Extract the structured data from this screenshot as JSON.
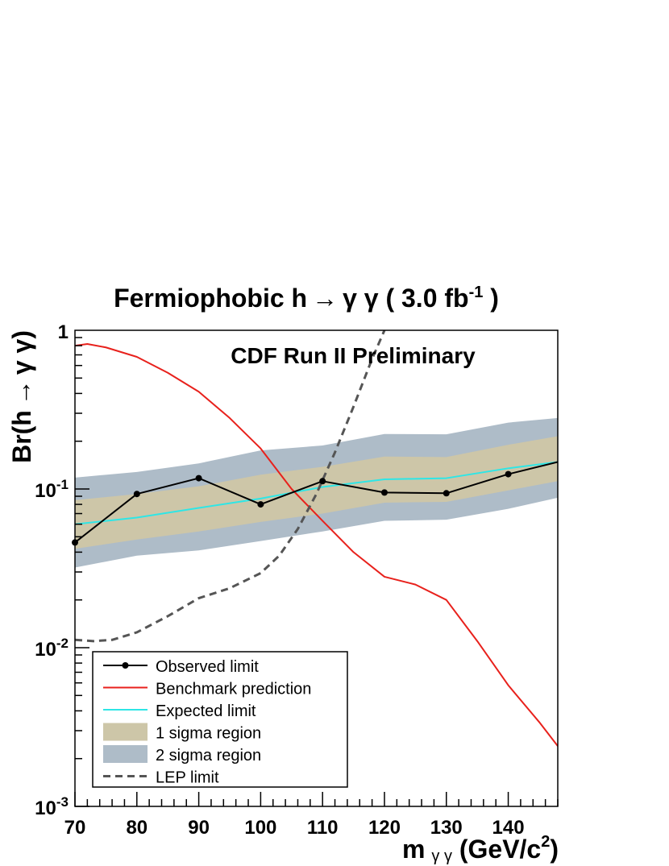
{
  "chart_data": {
    "type": "line",
    "title": {
      "prefix": "Fermiophobic h",
      "arrow": "→",
      "middle": "γ γ ( 3.0 fb",
      "sup": "-1",
      "suffix": " )"
    },
    "annotation": "CDF Run II Preliminary",
    "xlabel": {
      "main": "m",
      "sub": "γ γ",
      "unit": " (GeV/c",
      "sup": "2",
      "close": ")"
    },
    "ylabel": {
      "main": "Br(h",
      "arrow": "→",
      "rest": "γ γ)"
    },
    "xlim": [
      70,
      148
    ],
    "ylim": [
      0.001,
      1
    ],
    "yscale": "log",
    "x_ticks": [
      70,
      80,
      90,
      100,
      110,
      120,
      130,
      140
    ],
    "x_tick_labels": [
      "70",
      "80",
      "90",
      "100",
      "110",
      "120",
      "130",
      "140"
    ],
    "y_ticks": [
      {
        "base": "10",
        "exp": "-3",
        "value": 0.001
      },
      {
        "base": "10",
        "exp": "-2",
        "value": 0.01
      },
      {
        "base": "10",
        "exp": "-1",
        "value": 0.1
      },
      {
        "base": "1",
        "exp": "",
        "value": 1
      }
    ],
    "series": [
      {
        "name": "2 sigma region",
        "kind": "band",
        "color": "#aebcc8",
        "x": [
          70,
          80,
          90,
          100,
          110,
          120,
          130,
          140,
          148
        ],
        "lower": [
          0.032,
          0.038,
          0.041,
          0.047,
          0.054,
          0.063,
          0.064,
          0.075,
          0.088
        ],
        "upper": [
          0.118,
          0.128,
          0.145,
          0.175,
          0.188,
          0.222,
          0.221,
          0.262,
          0.28
        ]
      },
      {
        "name": "1 sigma region",
        "kind": "band",
        "color": "#cdc6a8",
        "x": [
          70,
          80,
          90,
          100,
          110,
          120,
          130,
          140,
          148
        ],
        "lower": [
          0.042,
          0.048,
          0.054,
          0.062,
          0.07,
          0.082,
          0.083,
          0.098,
          0.112
        ],
        "upper": [
          0.085,
          0.093,
          0.104,
          0.123,
          0.138,
          0.16,
          0.159,
          0.19,
          0.215
        ]
      },
      {
        "name": "Expected limit",
        "kind": "line",
        "color": "#2ee6e6",
        "x": [
          70,
          80,
          90,
          100,
          110,
          120,
          130,
          140,
          148
        ],
        "values": [
          0.06,
          0.066,
          0.076,
          0.087,
          0.103,
          0.115,
          0.117,
          0.135,
          0.148
        ]
      },
      {
        "name": "Benchmark prediction",
        "kind": "line",
        "color": "#e8211c",
        "x": [
          70,
          72,
          75,
          80,
          85,
          90,
          95,
          100,
          105,
          110,
          115,
          120,
          125,
          130,
          135,
          140,
          145,
          148
        ],
        "values": [
          0.8,
          0.82,
          0.78,
          0.68,
          0.54,
          0.41,
          0.28,
          0.18,
          0.1,
          0.063,
          0.04,
          0.028,
          0.025,
          0.02,
          0.011,
          0.0058,
          0.0034,
          0.0024
        ]
      },
      {
        "name": "LEP limit",
        "kind": "dashed",
        "color": "#555555",
        "x": [
          70,
          73,
          76,
          80,
          85,
          90,
          95,
          100,
          103,
          106,
          109,
          112,
          115,
          118,
          120
        ],
        "values": [
          0.0112,
          0.011,
          0.0112,
          0.0125,
          0.0158,
          0.0205,
          0.0237,
          0.0295,
          0.038,
          0.056,
          0.093,
          0.17,
          0.33,
          0.66,
          1.0
        ]
      },
      {
        "name": "Observed limit",
        "kind": "line-markers",
        "color": "#000000",
        "x": [
          70,
          80,
          90,
          100,
          110,
          120,
          130,
          140,
          148
        ],
        "values": [
          0.046,
          0.093,
          0.117,
          0.08,
          0.112,
          0.095,
          0.094,
          0.124,
          0.148
        ]
      }
    ],
    "legend": {
      "placement": "bottom-left",
      "entries": [
        {
          "label": "Observed limit",
          "kind": "line-markers",
          "color": "#000000"
        },
        {
          "label": "Benchmark prediction",
          "kind": "line",
          "color": "#e8211c"
        },
        {
          "label": "Expected limit",
          "kind": "line",
          "color": "#2ee6e6"
        },
        {
          "label": "1 sigma region",
          "kind": "box",
          "color": "#cdc6a8"
        },
        {
          "label": "2 sigma region",
          "kind": "box",
          "color": "#aebcc8"
        },
        {
          "label": "LEP limit",
          "kind": "dashed",
          "color": "#555555"
        }
      ]
    }
  }
}
